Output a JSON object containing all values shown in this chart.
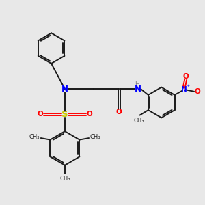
{
  "bg_color": "#e8e8e8",
  "bond_color": "#1a1a1a",
  "n_color": "#0000ff",
  "o_color": "#ff0000",
  "s_color": "#cccc00",
  "h_color": "#808080",
  "figsize": [
    3.0,
    3.0
  ],
  "dpi": 100,
  "xlim": [
    0,
    12
  ],
  "ylim": [
    0,
    12
  ]
}
